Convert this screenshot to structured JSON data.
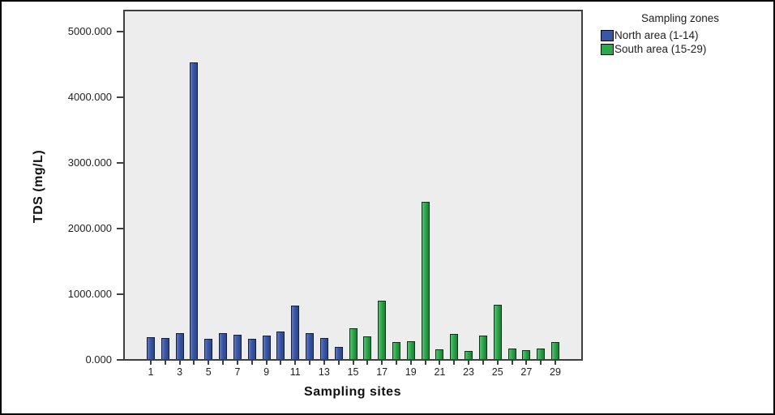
{
  "chart_data": {
    "type": "bar",
    "title": "",
    "xlabel": "Sampling sites",
    "ylabel": "TDS (mg/L)",
    "categories": [
      1,
      2,
      3,
      4,
      5,
      6,
      7,
      8,
      9,
      10,
      11,
      12,
      13,
      14,
      15,
      16,
      17,
      18,
      19,
      20,
      21,
      22,
      23,
      24,
      25,
      26,
      27,
      28,
      29
    ],
    "values": [
      330,
      320,
      400,
      4510,
      310,
      390,
      370,
      305,
      355,
      420,
      810,
      400,
      315,
      185,
      470,
      350,
      890,
      255,
      275,
      2390,
      145,
      380,
      120,
      360,
      830,
      165,
      135,
      160,
      255
    ],
    "north_count": 14,
    "series": [
      {
        "name": "North area (1-14)",
        "sites": "1-14",
        "color": "#3a57a7",
        "color_light": "#6079bd",
        "color_dark": "#2c4385",
        "border": "#12203f",
        "values": [
          330,
          320,
          400,
          4510,
          310,
          390,
          370,
          305,
          355,
          420,
          810,
          400,
          315,
          185
        ]
      },
      {
        "name": "South area (15-29)",
        "sites": "15-29",
        "color": "#2ea84c",
        "color_light": "#57c471",
        "color_dark": "#1e7c37",
        "border": "#0c3318",
        "values": [
          470,
          350,
          890,
          255,
          275,
          2390,
          145,
          380,
          120,
          360,
          830,
          165,
          135,
          160,
          255
        ]
      }
    ],
    "y_ticks": [
      {
        "value": 0,
        "label": "0.000"
      },
      {
        "value": 1000,
        "label": "1000.000"
      },
      {
        "value": 2000,
        "label": "2000.000"
      },
      {
        "value": 3000,
        "label": "3000.000"
      },
      {
        "value": 4000,
        "label": "4000.000"
      },
      {
        "value": 5000,
        "label": "5000.000"
      }
    ],
    "x_labeled_sites": [
      1,
      3,
      5,
      7,
      9,
      11,
      13,
      15,
      17,
      19,
      21,
      23,
      25,
      27,
      29
    ],
    "ylim": [
      0,
      5290
    ],
    "grid": false,
    "legend_position": "outside-top-right",
    "plot_bg": "#ededed"
  },
  "legend": {
    "title": "Sampling zones",
    "entries": [
      {
        "label": "North area (1-14)",
        "color": "#3a57a7"
      },
      {
        "label": "South area (15-29)",
        "color": "#2ea84c"
      }
    ]
  }
}
